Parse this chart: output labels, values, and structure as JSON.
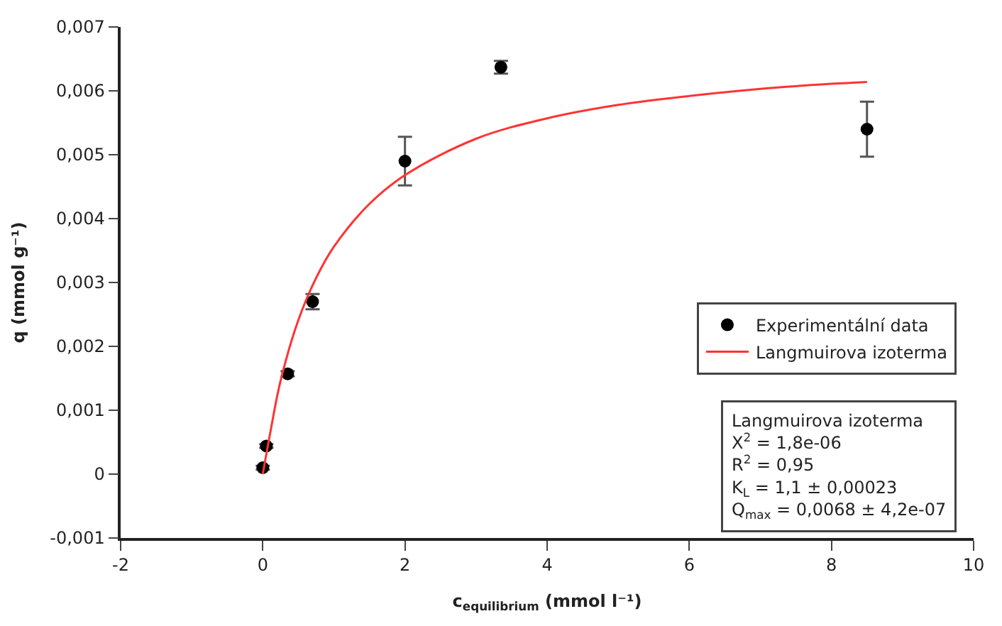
{
  "chart_data": {
    "type": "scatter",
    "xlabel": "c$_{equilibrium}$ (mmol l⁻¹)",
    "ylabel": "q (mmol g⁻¹)",
    "series": [
      {
        "name": "Experimentální data",
        "color": "#000000",
        "marker": "circle",
        "x": [
          0,
          0.05,
          0.35,
          0.7,
          2.0,
          3.35,
          8.5
        ],
        "values": [
          0.0001,
          0.00044,
          0.00157,
          0.0027,
          0.0049,
          0.00637,
          0.0054
        ],
        "errors": [
          3e-05,
          3e-05,
          4e-05,
          0.00012,
          0.00038,
          0.0001,
          0.00043
        ]
      },
      {
        "name": "Langmuirova izoterma",
        "type": "line",
        "color": "#ff3333",
        "marker": "none",
        "x": [
          0,
          0.1,
          0.25,
          0.5,
          0.75,
          1,
          1.5,
          2,
          3,
          4,
          5,
          6,
          7,
          8,
          8.5
        ],
        "values": [
          0,
          0.00062,
          0.00146,
          0.00241,
          0.00307,
          0.00356,
          0.00423,
          0.00468,
          0.00525,
          0.00557,
          0.00578,
          0.00592,
          0.00603,
          0.00611,
          0.00614
        ]
      }
    ],
    "annotations": [
      "Langmuirova izoterma",
      "X$^{2}$ = 1,8e-06",
      "R$^{2}$ = 0,95",
      "K$_{L}$ = 1,1 ± 0,00023",
      "Q$_{max}$ = 0,0068 ± 4,2e-07"
    ],
    "xlim": [
      -2,
      10
    ],
    "xticks": [
      -2,
      0,
      2,
      4,
      6,
      8,
      10
    ],
    "ylim": [
      -0.001,
      0.007
    ],
    "yticks": [
      {
        "value": -0.001,
        "label": "-0,001"
      },
      {
        "value": 0,
        "label": "0"
      },
      {
        "value": 0.001,
        "label": "0,001"
      },
      {
        "value": 0.002,
        "label": "0,002"
      },
      {
        "value": 0.003,
        "label": "0,003"
      },
      {
        "value": 0.004,
        "label": "0,004"
      },
      {
        "value": 0.005,
        "label": "0,005"
      },
      {
        "value": 0.006,
        "label": "0,006"
      },
      {
        "value": 0.007,
        "label": "0,007"
      }
    ],
    "legend": "bottom right"
  }
}
